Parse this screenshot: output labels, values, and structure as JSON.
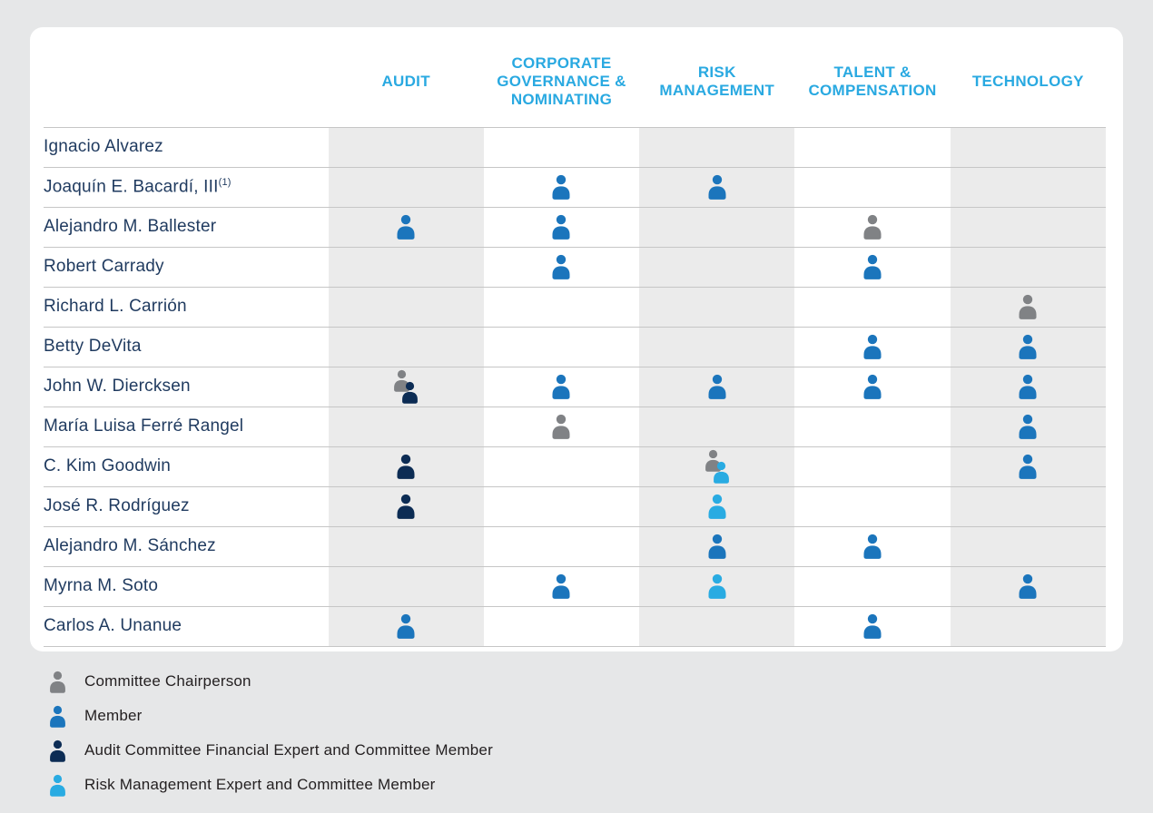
{
  "colors": {
    "page_background": "#e6e7e8",
    "card_background": "#ffffff",
    "header_text": "#29a9e1",
    "name_text": "#1f3a5f",
    "row_line": "#c6c6c6",
    "column_shade": "#ebebeb",
    "legend_text": "#231f20"
  },
  "roles": {
    "chair": {
      "label": "Committee Chairperson",
      "color": "#808285"
    },
    "member": {
      "label": "Member",
      "color": "#1b75bc"
    },
    "audit_expert": {
      "label": "Audit Committee Financial Expert and Committee Member",
      "color": "#0c2c54"
    },
    "risk_expert": {
      "label": "Risk Management Expert and Committee Member",
      "color": "#29abe2"
    }
  },
  "chart_data": {
    "type": "table",
    "columns": [
      {
        "key": "audit",
        "label": "AUDIT",
        "shaded": true
      },
      {
        "key": "corporate-governance-nominating",
        "label": "CORPORATE GOVERNANCE & NOMINATING",
        "shaded": false
      },
      {
        "key": "risk-management",
        "label": "RISK MANAGEMENT",
        "shaded": true
      },
      {
        "key": "talent-compensation",
        "label": "TALENT & COMPENSATION",
        "shaded": false
      },
      {
        "key": "technology",
        "label": "TECHNOLOGY",
        "shaded": true
      }
    ],
    "rows": [
      {
        "name": "Ignacio Alvarez",
        "footnote": "",
        "cells": [
          [],
          [],
          [],
          [],
          []
        ]
      },
      {
        "name": "Joaquín E. Bacardí, III",
        "footnote": "(1)",
        "cells": [
          [],
          [
            "member"
          ],
          [
            "member"
          ],
          [],
          []
        ]
      },
      {
        "name": "Alejandro M. Ballester",
        "footnote": "",
        "cells": [
          [
            "member"
          ],
          [
            "member"
          ],
          [],
          [
            "chair"
          ],
          []
        ]
      },
      {
        "name": "Robert Carrady",
        "footnote": "",
        "cells": [
          [],
          [
            "member"
          ],
          [],
          [
            "member"
          ],
          []
        ]
      },
      {
        "name": "Richard L. Carrión",
        "footnote": "",
        "cells": [
          [],
          [],
          [],
          [],
          [
            "chair"
          ]
        ]
      },
      {
        "name": "Betty DeVita",
        "footnote": "",
        "cells": [
          [],
          [],
          [],
          [
            "member"
          ],
          [
            "member"
          ]
        ]
      },
      {
        "name": "John W. Diercksen",
        "footnote": "",
        "cells": [
          [
            "chair",
            "audit_expert"
          ],
          [
            "member"
          ],
          [
            "member"
          ],
          [
            "member"
          ],
          [
            "member"
          ]
        ]
      },
      {
        "name": "María Luisa Ferré Rangel",
        "footnote": "",
        "cells": [
          [],
          [
            "chair"
          ],
          [],
          [],
          [
            "member"
          ]
        ]
      },
      {
        "name": "C. Kim Goodwin",
        "footnote": "",
        "cells": [
          [
            "audit_expert"
          ],
          [],
          [
            "chair",
            "risk_expert"
          ],
          [],
          [
            "member"
          ]
        ]
      },
      {
        "name": "José R. Rodríguez",
        "footnote": "",
        "cells": [
          [
            "audit_expert"
          ],
          [],
          [
            "risk_expert"
          ],
          [],
          []
        ]
      },
      {
        "name": "Alejandro M. Sánchez",
        "footnote": "",
        "cells": [
          [],
          [],
          [
            "member"
          ],
          [
            "member"
          ],
          []
        ]
      },
      {
        "name": "Myrna M. Soto",
        "footnote": "",
        "cells": [
          [],
          [
            "member"
          ],
          [
            "risk_expert"
          ],
          [],
          [
            "member"
          ]
        ]
      },
      {
        "name": "Carlos A. Unanue",
        "footnote": "",
        "cells": [
          [
            "member"
          ],
          [],
          [],
          [
            "member"
          ],
          []
        ]
      }
    ],
    "legend": [
      {
        "role": "chair",
        "label": "Committee Chairperson"
      },
      {
        "role": "member",
        "label": "Member"
      },
      {
        "role": "audit_expert",
        "label": "Audit Committee Financial Expert and Committee Member"
      },
      {
        "role": "risk_expert",
        "label": "Risk Management Expert and Committee Member"
      }
    ]
  }
}
